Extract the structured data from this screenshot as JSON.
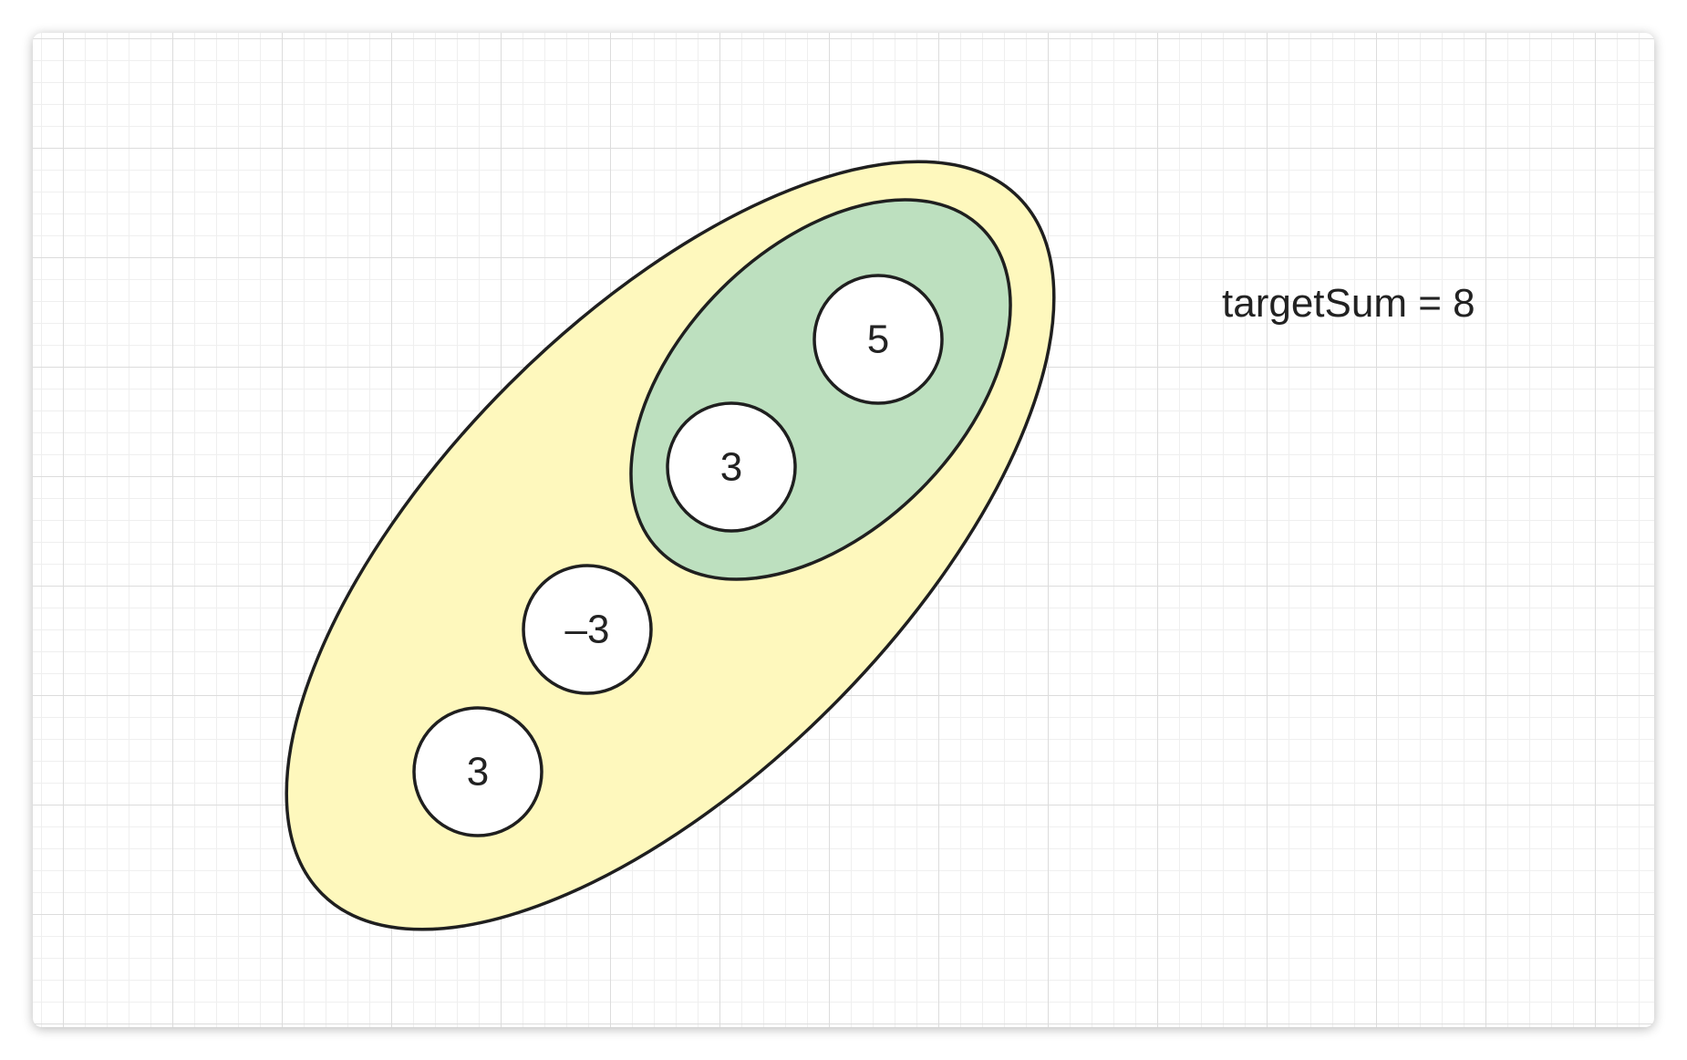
{
  "colors": {
    "outer_group_fill": "#fef8bd",
    "inner_group_fill": "#bde0bf",
    "node_fill": "#ffffff",
    "stroke": "#1f1f1f"
  },
  "nodes": [
    {
      "label": "5"
    },
    {
      "label": "3"
    },
    {
      "label": "–3"
    },
    {
      "label": "3"
    }
  ],
  "target_label": "targetSum = 8"
}
